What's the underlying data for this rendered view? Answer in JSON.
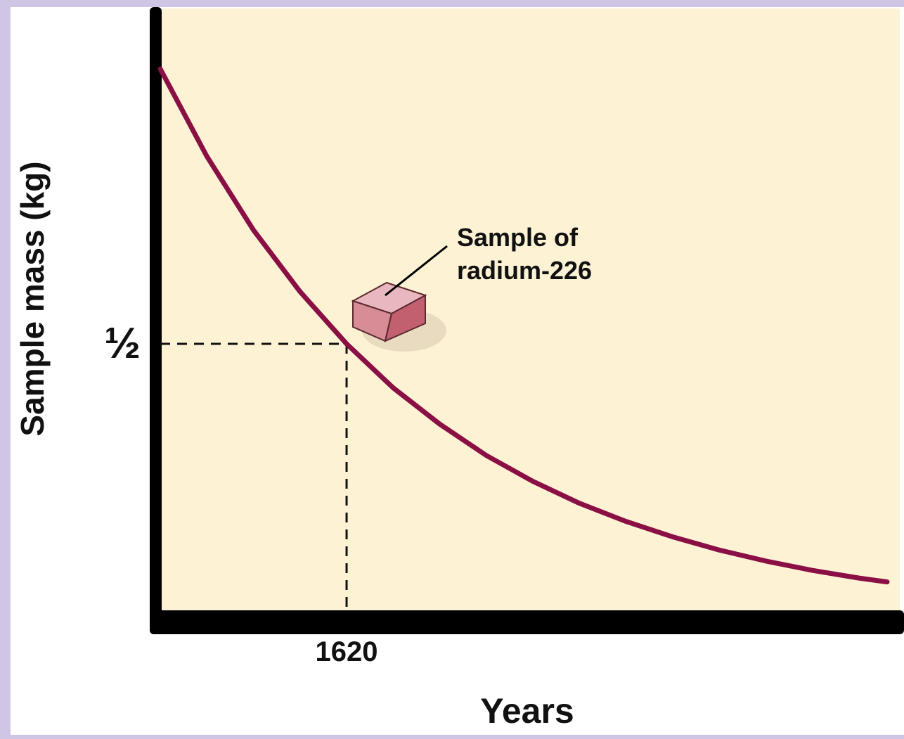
{
  "chart_data": {
    "type": "line",
    "x_label": "Years",
    "y_label": "Sample mass (kg)",
    "annotation": [
      "Sample of",
      "radium-226"
    ],
    "x": [
      0,
      405,
      810,
      1215,
      1620,
      2025,
      2430,
      2835,
      3240,
      3645,
      4050,
      4455,
      4860,
      5265,
      5670,
      6075,
      6320
    ],
    "series": [
      {
        "color": "#8a0f45",
        "values": [
          1,
          0.841,
          0.707,
          0.595,
          0.5,
          0.42,
          0.354,
          0.297,
          0.25,
          0.21,
          0.177,
          0.149,
          0.125,
          0.105,
          0.088,
          0.074,
          0.067
        ]
      }
    ],
    "xlim": [
      0,
      6430
    ],
    "ylim": [
      0,
      1.11
    ],
    "xticks": [
      1620
    ],
    "yticks": [
      {
        "value": 0.5,
        "label": "½"
      }
    ],
    "guide_lines": true,
    "plot_background": "#fdf3d4"
  }
}
